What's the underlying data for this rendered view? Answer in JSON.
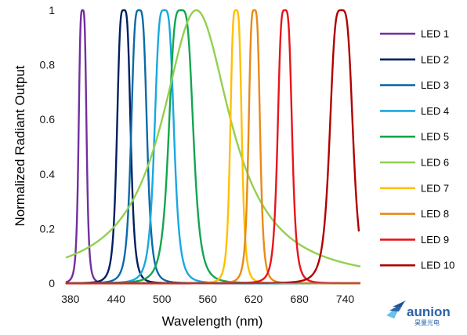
{
  "chart_data": {
    "type": "line",
    "xlabel": "Wavelength (nm)",
    "ylabel": "Normalized Radiant Output",
    "xlim": [
      373,
      760
    ],
    "ylim": [
      0,
      1
    ],
    "x_ticks": [
      380,
      440,
      500,
      560,
      620,
      680,
      740
    ],
    "y_ticks": [
      0,
      0.2,
      0.4,
      0.6,
      0.8,
      1
    ],
    "y_tick_labels": [
      "0",
      "0.2",
      "0.4",
      "0.6",
      "0.8",
      "1"
    ],
    "grid": false,
    "legend_position": "right",
    "series": [
      {
        "name": "LED 1",
        "color": "#7030a0",
        "peak": 396,
        "fwhm": 11,
        "tail": 4,
        "x_range": [
          374,
          472
        ]
      },
      {
        "name": "LED 2",
        "color": "#002060",
        "peak": 450,
        "fwhm": 19,
        "tail": 4,
        "x_range": [
          374,
          760
        ]
      },
      {
        "name": "LED 3",
        "color": "#0b6aa8",
        "peak": 470,
        "fwhm": 22,
        "tail": 4,
        "x_range": [
          374,
          760
        ]
      },
      {
        "name": "LED 4",
        "color": "#19a8e0",
        "peak": 503,
        "fwhm": 27,
        "tail": 4,
        "x_range": [
          374,
          760
        ]
      },
      {
        "name": "LED 5",
        "color": "#12a64e",
        "peak": 525,
        "fwhm": 34,
        "tail": 4,
        "x_range": [
          374,
          760
        ]
      },
      {
        "name": "LED 6",
        "color": "#92d050",
        "peak": 545,
        "fwhm": 110,
        "tail": 2,
        "x_range": [
          374,
          760
        ]
      },
      {
        "name": "LED 7",
        "color": "#ffc000",
        "peak": 597,
        "fwhm": 16,
        "tail": 4,
        "x_range": [
          374,
          760
        ]
      },
      {
        "name": "LED 8",
        "color": "#e88a1a",
        "peak": 621,
        "fwhm": 16,
        "tail": 4,
        "x_range": [
          374,
          760
        ]
      },
      {
        "name": "LED 9",
        "color": "#e8141c",
        "peak": 661,
        "fwhm": 20,
        "tail": 4,
        "x_range": [
          374,
          760
        ]
      },
      {
        "name": "LED 10",
        "color": "#b00000",
        "peak": 735,
        "fwhm": 32,
        "tail": 4,
        "x_range": [
          374,
          758
        ]
      }
    ]
  },
  "logo": {
    "brand": "aunion",
    "subtitle": "昊量光电"
  }
}
